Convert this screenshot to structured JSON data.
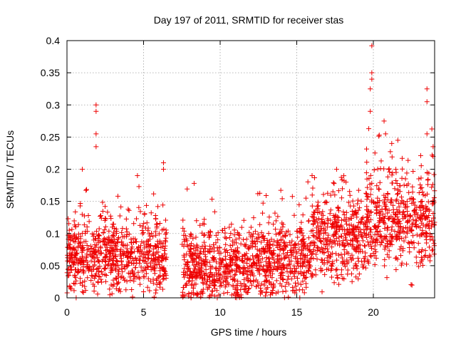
{
  "chart_data": {
    "type": "scatter",
    "title": "Day 197 of 2011, SRMTID for receiver stas",
    "xlabel": "GPS time / hours",
    "ylabel": "SRMTID / TECUs",
    "xlim": [
      0,
      24
    ],
    "ylim": [
      0,
      0.4
    ],
    "xticks": [
      0,
      5,
      10,
      15,
      20
    ],
    "xtick_labels": [
      "0",
      "5",
      "10",
      "15",
      "20"
    ],
    "yticks": [
      0,
      0.05,
      0.1,
      0.15,
      0.2,
      0.25,
      0.3,
      0.35,
      0.4
    ],
    "ytick_labels": [
      "0",
      "0.05",
      "0.1",
      "0.15",
      "0.2",
      "0.25",
      "0.3",
      "0.35",
      "0.4"
    ],
    "grid": true,
    "marker": "+",
    "color": "#ee0000",
    "series": [
      {
        "name": "SRMTID",
        "profile_note": "approximate envelope of dense scatter: typical level and spread per hour",
        "segments": [
          {
            "x": [
              0.0,
              6.5
            ],
            "typical": 0.065,
            "spread": 0.035
          },
          {
            "x": [
              7.5,
              12.0
            ],
            "typical": 0.05,
            "spread": 0.035
          },
          {
            "x": [
              12.0,
              16.0
            ],
            "typical": 0.06,
            "spread": 0.035
          },
          {
            "x": [
              16.0,
              19.5
            ],
            "typical": 0.095,
            "spread": 0.04
          },
          {
            "x": [
              19.5,
              24.0
            ],
            "typical": 0.12,
            "spread": 0.045
          }
        ],
        "notable_points": [
          {
            "x": 0.6,
            "y": 0.0
          },
          {
            "x": 1.0,
            "y": 0.2
          },
          {
            "x": 1.9,
            "y": 0.3
          },
          {
            "x": 1.9,
            "y": 0.29
          },
          {
            "x": 1.9,
            "y": 0.255
          },
          {
            "x": 1.9,
            "y": 0.235
          },
          {
            "x": 4.6,
            "y": 0.19
          },
          {
            "x": 4.7,
            "y": 0.173
          },
          {
            "x": 6.3,
            "y": 0.21
          },
          {
            "x": 6.3,
            "y": 0.2
          },
          {
            "x": 8.3,
            "y": 0.178
          },
          {
            "x": 13.0,
            "y": 0.159
          },
          {
            "x": 15.6,
            "y": 0.155
          },
          {
            "x": 16.0,
            "y": 0.19
          },
          {
            "x": 17.6,
            "y": 0.2
          },
          {
            "x": 19.9,
            "y": 0.392
          },
          {
            "x": 19.9,
            "y": 0.35
          },
          {
            "x": 19.9,
            "y": 0.34
          },
          {
            "x": 19.8,
            "y": 0.325
          },
          {
            "x": 19.8,
            "y": 0.29
          },
          {
            "x": 19.7,
            "y": 0.263
          },
          {
            "x": 20.7,
            "y": 0.275
          },
          {
            "x": 20.8,
            "y": 0.255
          },
          {
            "x": 21.2,
            "y": 0.24
          },
          {
            "x": 22.1,
            "y": 0.185
          },
          {
            "x": 23.5,
            "y": 0.325
          },
          {
            "x": 23.5,
            "y": 0.305
          },
          {
            "x": 23.5,
            "y": 0.255
          },
          {
            "x": 23.9,
            "y": 0.235
          },
          {
            "x": 23.9,
            "y": 0.22
          },
          {
            "x": 15.2,
            "y": 0.0
          },
          {
            "x": 8.1,
            "y": 0.0
          }
        ]
      }
    ]
  }
}
